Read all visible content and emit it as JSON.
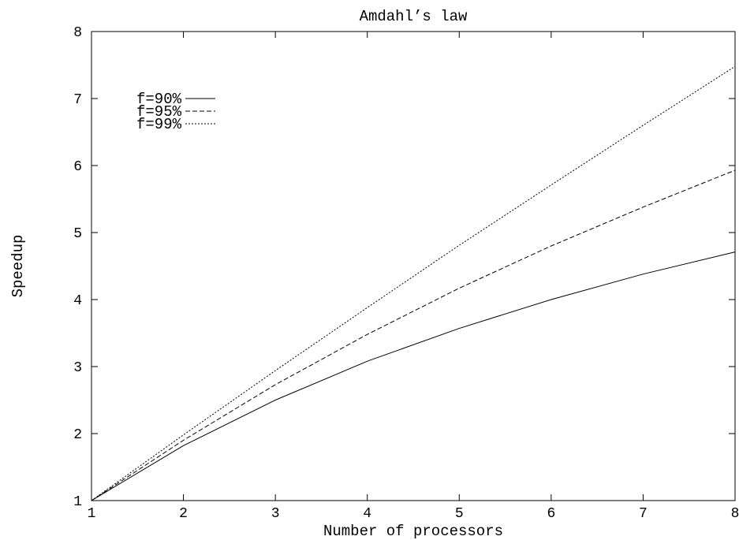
{
  "chart_data": {
    "type": "line",
    "title": "Amdahl’s law",
    "xlabel": "Number of processors",
    "ylabel": "Speedup",
    "xlim": [
      1,
      8
    ],
    "ylim": [
      1,
      8
    ],
    "xticks": [
      1,
      2,
      3,
      4,
      5,
      6,
      7,
      8
    ],
    "yticks": [
      1,
      2,
      3,
      4,
      5,
      6,
      7,
      8
    ],
    "grid": false,
    "legend_position": "top-left",
    "x": [
      1,
      2,
      3,
      4,
      5,
      6,
      7,
      8
    ],
    "series": [
      {
        "name": "f=90%",
        "dash": "solid",
        "values": [
          1.0,
          1.82,
          2.5,
          3.08,
          3.57,
          4.0,
          4.38,
          4.71
        ]
      },
      {
        "name": "f=95%",
        "dash": "dashed",
        "values": [
          1.0,
          1.9,
          2.73,
          3.48,
          4.17,
          4.8,
          5.38,
          5.93
        ]
      },
      {
        "name": "f=99%",
        "dash": "dotted",
        "values": [
          1.0,
          1.98,
          2.94,
          3.88,
          4.81,
          5.71,
          6.6,
          7.48
        ]
      }
    ]
  }
}
